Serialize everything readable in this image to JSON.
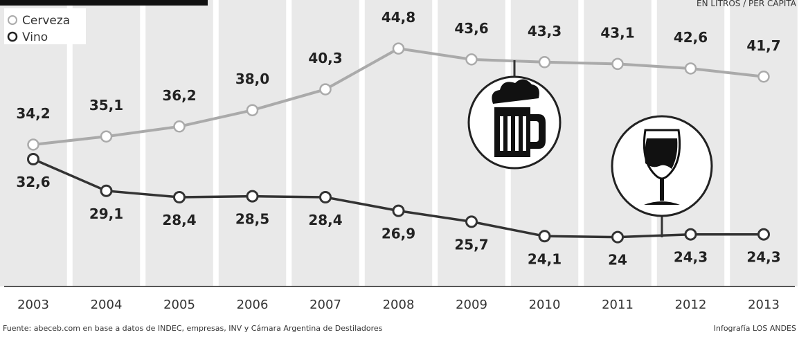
{
  "chart_data": {
    "type": "line",
    "x": [
      "2003",
      "2004",
      "2005",
      "2006",
      "2007",
      "2008",
      "2009",
      "2010",
      "2011",
      "2012",
      "2013"
    ],
    "series": [
      {
        "name": "Cerveza",
        "values": [
          34.2,
          35.1,
          36.2,
          38.0,
          40.3,
          44.8,
          43.6,
          43.3,
          43.1,
          42.6,
          41.7
        ],
        "labels": [
          "34,2",
          "35,1",
          "36,2",
          "38,0",
          "40,3",
          "44,8",
          "43,6",
          "43,3",
          "43,1",
          "42,6",
          "41,7"
        ],
        "color": "#aaaaaa"
      },
      {
        "name": "Vino",
        "values": [
          32.6,
          29.1,
          28.4,
          28.5,
          28.4,
          26.9,
          25.7,
          24.1,
          24,
          24.3,
          24.3
        ],
        "labels": [
          "32,6",
          "29,1",
          "28,4",
          "28,5",
          "28,4",
          "26,9",
          "25,7",
          "24,1",
          "24",
          "24,3",
          "24,3"
        ],
        "color": "#333333"
      }
    ],
    "legend_position": "top-left",
    "grid": "alternating vertical bands"
  },
  "top_right_text": "EN LITROS / PER CAPITA",
  "source": "Fuente: abeceb.com en base a datos de INDEC, empresas, INV y Cámara Argentina de Destiladores",
  "credit": "Infografía LOS ANDES",
  "icons": [
    "beer-mug-icon",
    "wine-glass-icon"
  ]
}
